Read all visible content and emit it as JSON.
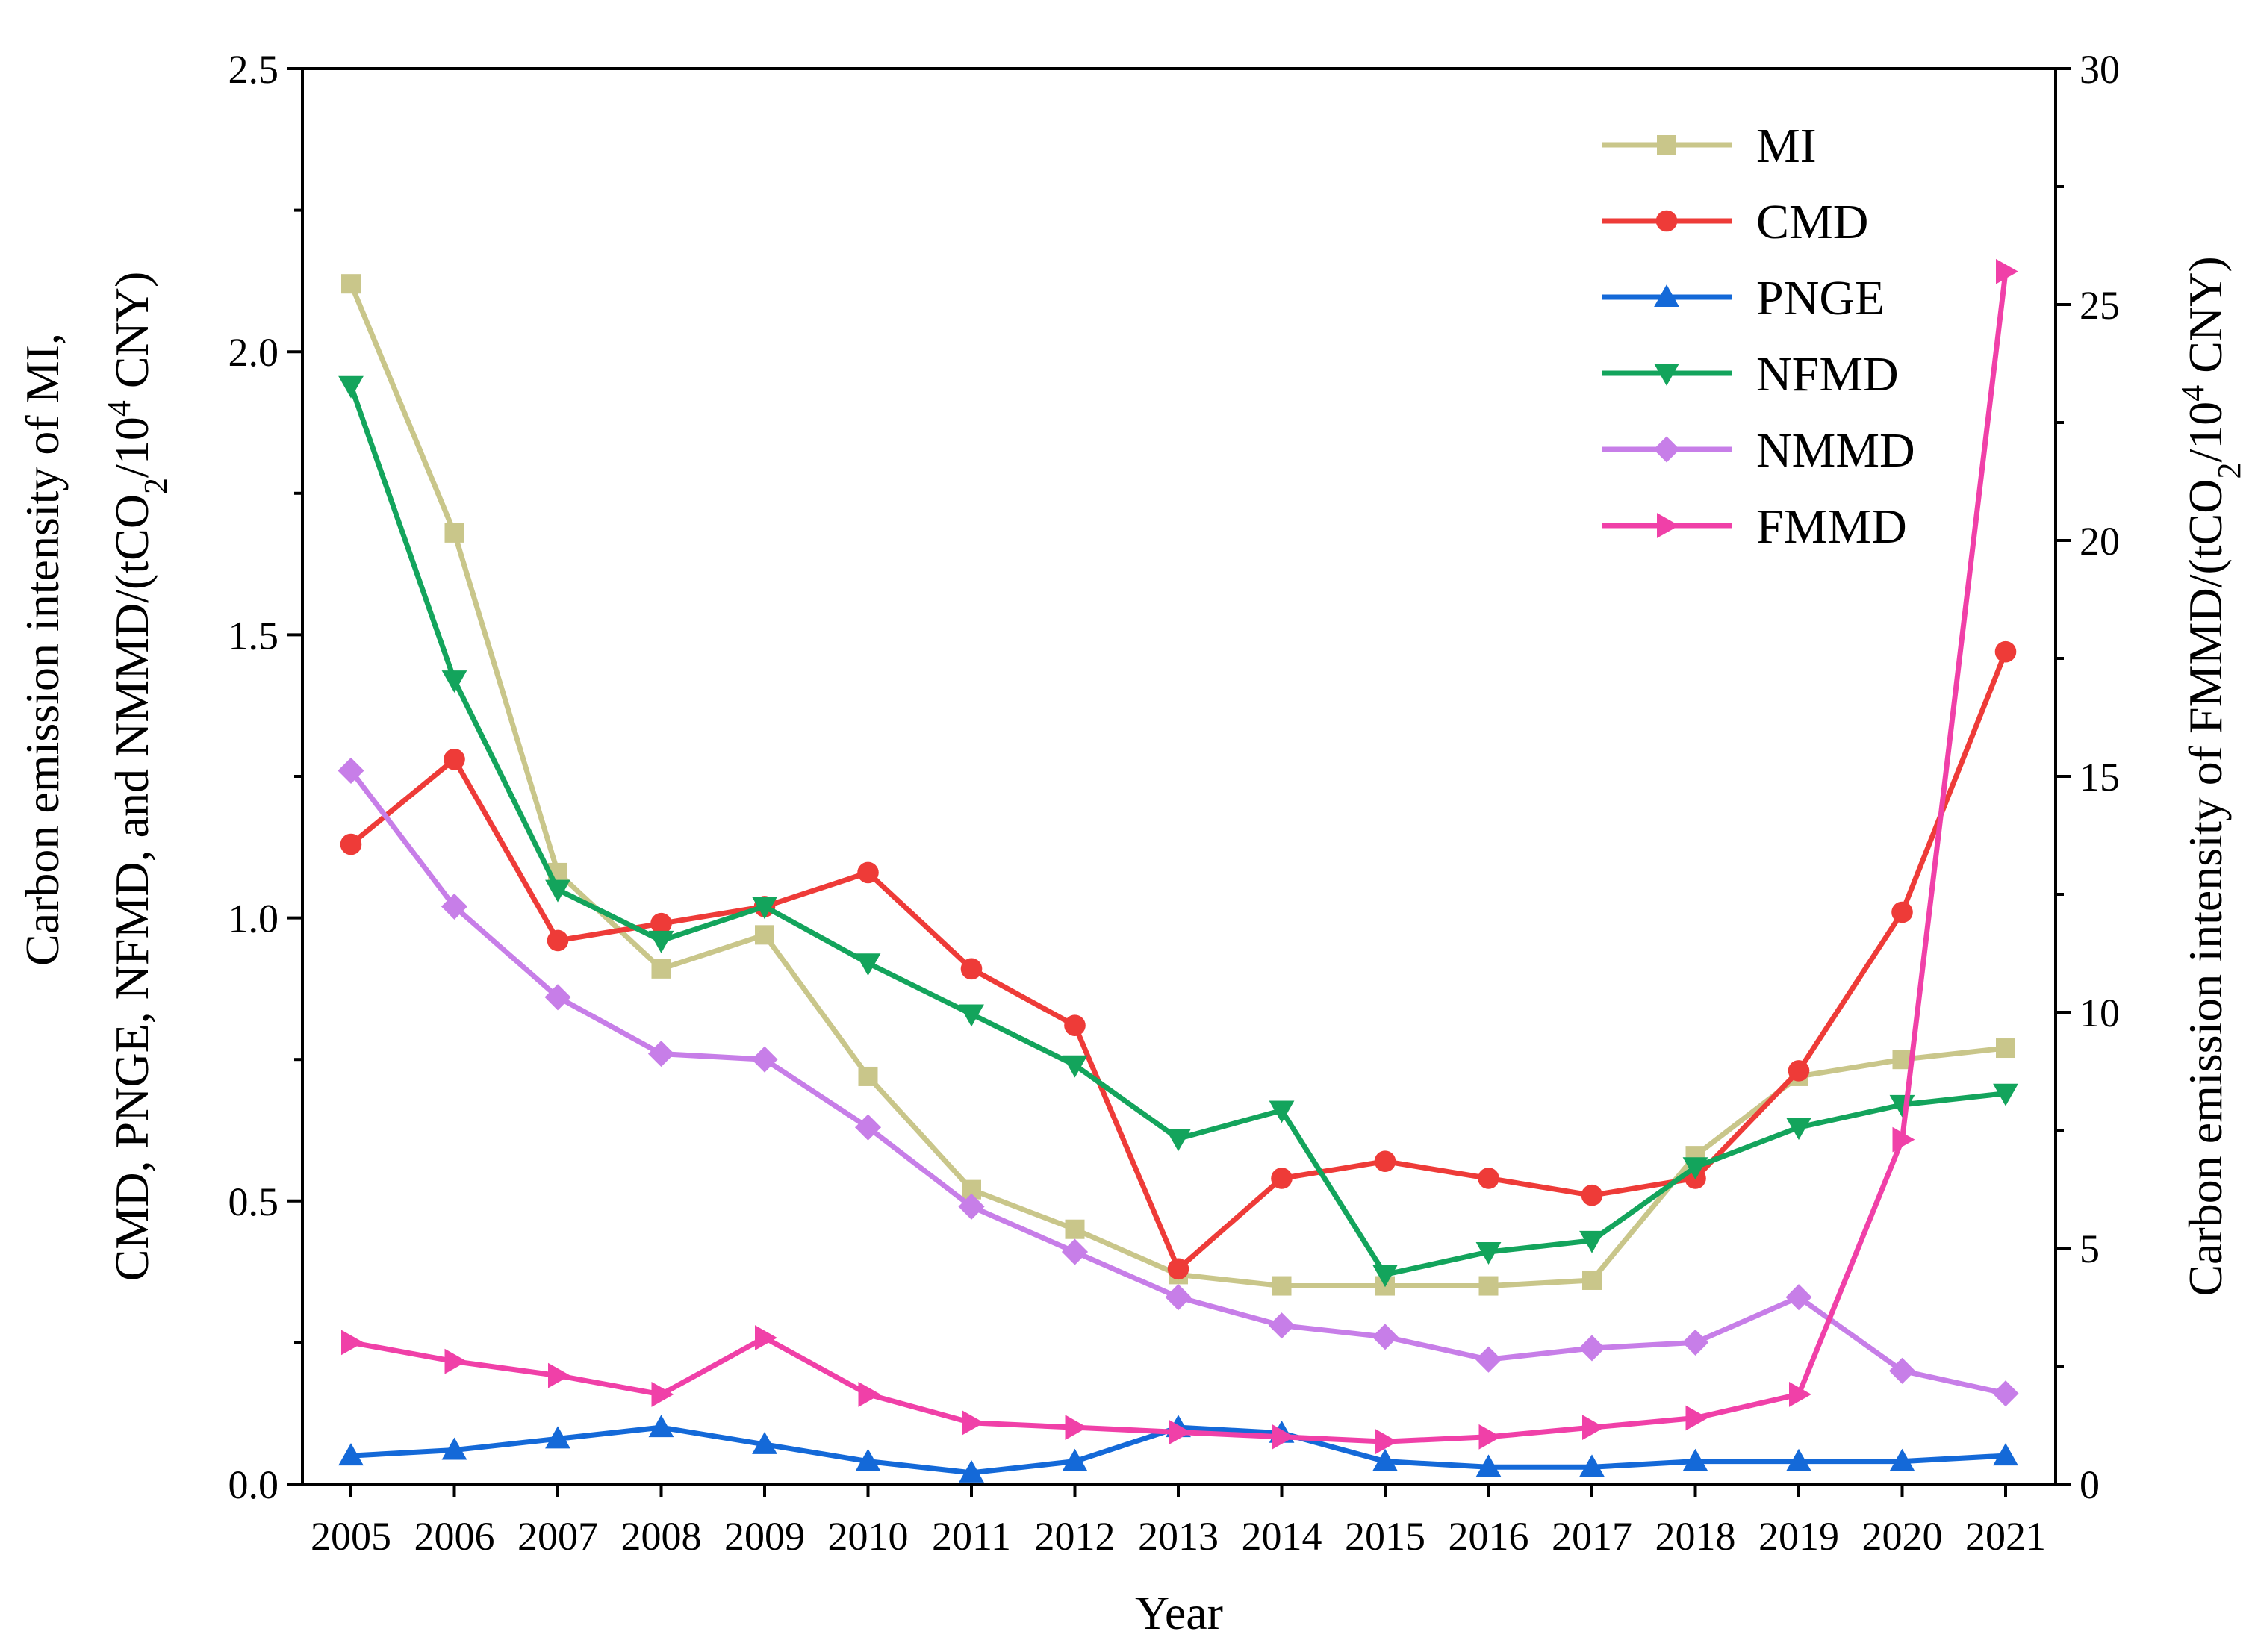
{
  "chart_data": {
    "type": "line",
    "categories": [
      "2005",
      "2006",
      "2007",
      "2008",
      "2009",
      "2010",
      "2011",
      "2012",
      "2013",
      "2014",
      "2015",
      "2016",
      "2017",
      "2018",
      "2019",
      "2020",
      "2021"
    ],
    "xlabel": "Year",
    "ylabel_left": {
      "line1": "Carbon emission intensity of  MI,",
      "line2_prefix": "CMD, PNGE, NFMD, and NMMD/(tCO",
      "line2_sub": "2",
      "line2_mid": "/10",
      "line2_sup": "4",
      "line2_suffix": " CNY)"
    },
    "ylabel_right": {
      "prefix": "Carbon emission intensity of  FMMD/(tCO",
      "sub": "2",
      "mid": "/10",
      "sup": "4",
      "suffix": " CNY)"
    },
    "ylim_left": [
      0,
      2.5
    ],
    "yticks_left": [
      "0.0",
      "0.5",
      "1.0",
      "1.5",
      "2.0",
      "2.5"
    ],
    "ylim_right": [
      0,
      30
    ],
    "yticks_right": [
      "0",
      "5",
      "10",
      "15",
      "20",
      "25",
      "30"
    ],
    "legend_position": "top-right",
    "series": [
      {
        "name": "MI",
        "axis": "left",
        "color": "#c9c68a",
        "marker": "square",
        "values": [
          2.12,
          1.68,
          1.08,
          0.91,
          0.97,
          0.72,
          0.52,
          0.45,
          0.37,
          0.35,
          0.35,
          0.35,
          0.36,
          0.58,
          0.72,
          0.75,
          0.77
        ]
      },
      {
        "name": "CMD",
        "axis": "left",
        "color": "#ee3b38",
        "marker": "circle",
        "values": [
          1.13,
          1.28,
          0.96,
          0.99,
          1.02,
          1.08,
          0.91,
          0.81,
          0.38,
          0.54,
          0.57,
          0.54,
          0.51,
          0.54,
          0.73,
          1.01,
          1.47
        ]
      },
      {
        "name": "PNGE",
        "axis": "left",
        "color": "#1469d8",
        "marker": "triangle-up",
        "values": [
          0.05,
          0.06,
          0.08,
          0.1,
          0.07,
          0.04,
          0.02,
          0.04,
          0.1,
          0.09,
          0.04,
          0.03,
          0.03,
          0.04,
          0.04,
          0.04,
          0.05
        ]
      },
      {
        "name": "NFMD",
        "axis": "left",
        "color": "#13a45c",
        "marker": "triangle-down",
        "values": [
          1.94,
          1.42,
          1.05,
          0.96,
          1.02,
          0.92,
          0.83,
          0.74,
          0.61,
          0.66,
          0.37,
          0.41,
          0.43,
          0.56,
          0.63,
          0.67,
          0.69
        ]
      },
      {
        "name": "NMMD",
        "axis": "left",
        "color": "#c77ee8",
        "marker": "diamond",
        "values": [
          1.26,
          1.02,
          0.86,
          0.76,
          0.75,
          0.63,
          0.49,
          0.41,
          0.33,
          0.28,
          0.26,
          0.22,
          0.24,
          0.25,
          0.33,
          0.2,
          0.16
        ]
      },
      {
        "name": "FMMD",
        "axis": "right",
        "color": "#f040a8",
        "marker": "triangle-right",
        "values": [
          3.0,
          2.6,
          2.3,
          1.9,
          3.1,
          1.9,
          1.3,
          1.2,
          1.1,
          1.0,
          0.9,
          1.0,
          1.2,
          1.4,
          1.9,
          7.3,
          25.7
        ]
      }
    ]
  }
}
